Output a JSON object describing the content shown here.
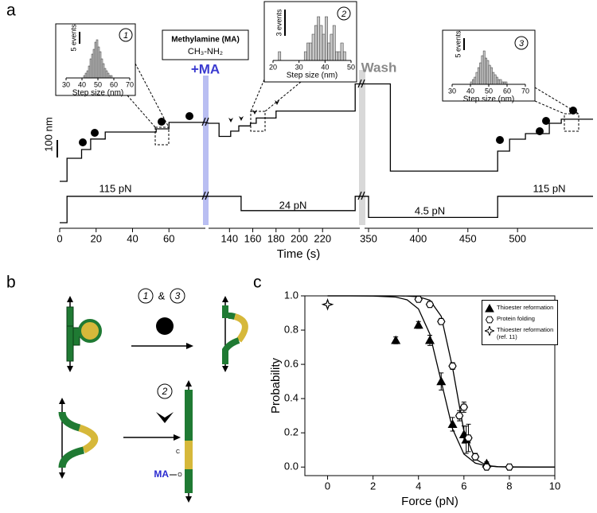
{
  "figure": {
    "panel_labels": [
      "a",
      "b",
      "c"
    ]
  },
  "chart_data": [
    {
      "type": "line",
      "xlabel": "Time (s)",
      "xlims": [
        [
          0,
          80
        ],
        [
          122,
          252
        ],
        [
          346,
          576
        ]
      ],
      "xticks": [
        0,
        20,
        40,
        60,
        140,
        160,
        180,
        200,
        220,
        350,
        400,
        450,
        500
      ],
      "series": [
        {
          "color": "#000000",
          "x": [
            0,
            4,
            4,
            12,
            12,
            17,
            17,
            25,
            25,
            53,
            53,
            60,
            60,
            80,
            122,
            131,
            131,
            141,
            141,
            148,
            148,
            158,
            158,
            163,
            163,
            180,
            180,
            248,
            248,
            252,
            346,
            372,
            372,
            480,
            480,
            492,
            492,
            508,
            508,
            532,
            532,
            544,
            544,
            576
          ],
          "values": [
            18,
            18,
            150,
            150,
            200,
            200,
            260,
            260,
            300,
            300,
            318,
            318,
            355,
            355,
            350,
            350,
            275,
            275,
            305,
            305,
            335,
            335,
            350,
            350,
            380,
            380,
            420,
            420,
            575,
            575,
            575,
            575,
            77,
            77,
            191,
            191,
            259,
            259,
            291,
            291,
            350,
            350,
            373,
            373
          ]
        }
      ],
      "force": {
        "color": "#000000",
        "x": [
          0,
          4,
          4,
          80,
          122,
          150,
          150,
          248,
          248,
          252,
          346,
          350,
          350,
          480,
          480,
          576
        ],
        "values": [
          0,
          0,
          115,
          115,
          115,
          115,
          24,
          24,
          115,
          115,
          115,
          115,
          4.5,
          4.5,
          115,
          115
        ],
        "labels": [
          "115 pN",
          "24 pN",
          "4.5 pN",
          "115 pN"
        ]
      },
      "scale_bar": {
        "value": 100,
        "label": "100 nm"
      },
      "annotations": {
        "ma_box_title": "Methylamine (MA)",
        "ma_box_formula": "CH₃-NH₂",
        "ma": "+MA",
        "wash": "Wash"
      },
      "insets": [
        {
          "type": "histogram",
          "number": "1",
          "xlabel": "Step size (nm)",
          "xlim": [
            30,
            70
          ],
          "xticks": [
            30,
            40,
            50,
            60,
            70
          ],
          "bins": [
            41,
            42,
            43,
            44,
            45,
            46,
            47,
            48,
            49,
            50,
            51,
            52,
            53,
            54,
            55,
            56,
            57,
            58,
            59
          ],
          "counts": [
            1,
            2,
            3,
            5,
            8,
            10,
            12,
            15,
            16,
            13,
            11,
            8,
            6,
            4,
            3,
            2,
            1,
            1
          ],
          "scale_bar": {
            "value": 5,
            "label": "5 events"
          }
        },
        {
          "type": "histogram",
          "number": "2",
          "xlabel": "Step size (nm)",
          "xlim": [
            20,
            50
          ],
          "xticks": [
            20,
            30,
            40,
            50
          ],
          "bins": [
            22,
            23,
            24,
            25,
            26,
            27,
            28,
            29,
            30,
            31,
            32,
            33,
            34,
            35,
            36,
            37,
            38,
            39,
            40,
            41,
            42,
            43,
            44,
            45,
            46,
            47,
            48
          ],
          "counts": [
            1,
            0,
            0,
            0,
            0,
            0,
            0,
            0,
            0,
            0,
            1,
            2,
            2,
            3,
            4,
            5,
            4,
            3,
            5,
            2,
            3,
            4,
            1,
            1,
            2,
            1
          ],
          "scale_bar": {
            "value": 3,
            "label": "3 events"
          }
        },
        {
          "type": "histogram",
          "number": "3",
          "xlabel": "Step size (nm)",
          "xlim": [
            30,
            70
          ],
          "xticks": [
            30,
            40,
            50,
            60,
            70
          ],
          "bins": [
            40,
            41,
            42,
            43,
            44,
            45,
            46,
            47,
            48,
            49,
            50,
            51,
            52,
            53,
            54,
            55,
            56,
            57,
            58,
            59,
            60
          ],
          "counts": [
            1,
            2,
            3,
            5,
            7,
            9,
            12,
            14,
            11,
            10,
            8,
            7,
            5,
            4,
            3,
            2,
            2,
            1,
            1,
            1
          ],
          "scale_bar": {
            "value": 5,
            "label": "5 events"
          }
        }
      ]
    },
    {
      "type": "scatter",
      "xlabel": "Force (pN)",
      "ylabel": "Probability",
      "xlim": [
        -1,
        10
      ],
      "ylim": [
        -0.05,
        1.0
      ],
      "xticks": [
        0,
        2,
        4,
        6,
        8,
        10
      ],
      "yticks": [
        {
          "value": 0,
          "label": "0.0"
        },
        0.2,
        0.4,
        0.6,
        0.8,
        {
          "value": 1,
          "label": "1.0"
        }
      ],
      "legend": "upper right",
      "series": [
        {
          "name": "Thioester reformation",
          "marker": "triangle",
          "color": "#000000",
          "x": [
            3,
            4,
            4.5,
            5,
            5.5,
            6,
            6.1,
            7
          ],
          "values": [
            0.74,
            0.83,
            0.74,
            0.5,
            0.25,
            0.19,
            0.16,
            0.02
          ],
          "errors": [
            0.02,
            0.02,
            0.03,
            0.05,
            0.04,
            0.05,
            0.08,
            0.01
          ]
        },
        {
          "name": "Protein folding",
          "marker": "hexagon",
          "color": "#000000",
          "x": [
            4,
            4.5,
            5,
            5.5,
            5.8,
            6,
            6.2,
            6.5,
            7,
            8
          ],
          "values": [
            0.98,
            0.95,
            0.85,
            0.59,
            0.3,
            0.35,
            0.17,
            0.06,
            0,
            0
          ],
          "errors": [
            0.01,
            0.01,
            0.01,
            0.02,
            0.03,
            0.03,
            0.08,
            0.02,
            0.01,
            0.01
          ]
        },
        {
          "name": "Thioester reformation (ref. 11)",
          "marker": "star",
          "color": "#000000",
          "x": [
            0
          ],
          "values": [
            0.95
          ]
        }
      ],
      "fits": [
        {
          "color": "#000000",
          "x": [
            0,
            1,
            2,
            3,
            3.5,
            4,
            4.5,
            5,
            5.5,
            6,
            6.5,
            7,
            7.5,
            8,
            9,
            10
          ],
          "values": [
            1,
            1,
            0.999,
            0.993,
            0.977,
            0.924,
            0.777,
            0.5,
            0.223,
            0.076,
            0.023,
            0.007,
            0.002,
            0.001,
            0,
            0
          ]
        },
        {
          "color": "#000000",
          "x": [
            0,
            1,
            2,
            3,
            3.5,
            4,
            4.5,
            5,
            5.5,
            6,
            6.5,
            7,
            7.5,
            8,
            9,
            10
          ],
          "values": [
            1,
            1,
            1,
            1,
            0.999,
            0.995,
            0.975,
            0.881,
            0.582,
            0.209,
            0.047,
            0.009,
            0.002,
            0,
            0,
            0
          ]
        }
      ]
    }
  ],
  "panel_b": {
    "step_1": "1",
    "and": "&",
    "step_3": "3",
    "step_2": "2",
    "ma_label": "MA",
    "c_label": "C",
    "o_label": "O"
  }
}
